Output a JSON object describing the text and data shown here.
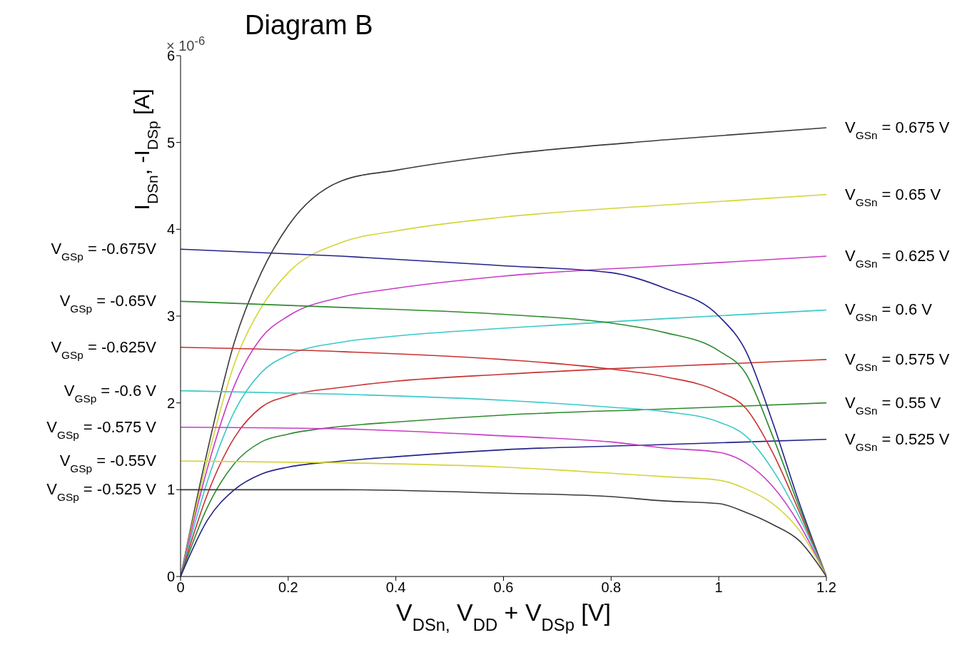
{
  "chart_data": {
    "type": "line",
    "title": "Diagram B",
    "xlabel": "V$_{DSn,}$ V$_{DD}$ + V$_{DSp}$ [V]",
    "ylabel": "I$_{DSn}$, -I$_{DSp}$ [A]",
    "annotations": [
      "× 10$^{-6}$"
    ],
    "xlim": [
      0,
      1.2
    ],
    "xticks": [
      0,
      0.2,
      0.4,
      0.6,
      0.8,
      1,
      1.2
    ],
    "ylim": [
      0,
      6
    ],
    "yticks": [
      0,
      1,
      2,
      3,
      4,
      5,
      6
    ],
    "line_style": "solid",
    "series": [
      {
        "name": "V$_{GSn}$ = 0.675 V",
        "color": "#3a3a3a",
        "x": [
          0,
          0.05,
          0.1,
          0.15,
          0.2,
          0.3,
          0.4,
          0.6,
          0.9,
          1.2
        ],
        "values": [
          0,
          1.45,
          2.7,
          3.5,
          4.04,
          4.56,
          4.68,
          4.86,
          5.03,
          5.17
        ]
      },
      {
        "name": "V$_{GSn}$ = 0.65 V",
        "color": "#d4d43a",
        "x": [
          0,
          0.05,
          0.1,
          0.15,
          0.2,
          0.3,
          0.4,
          0.6,
          0.9,
          1.2
        ],
        "values": [
          0,
          1.35,
          2.45,
          3.1,
          3.5,
          3.85,
          3.98,
          4.14,
          4.28,
          4.4
        ]
      },
      {
        "name": "V$_{GSn}$ = 0.625 V",
        "color": "#c83cc8",
        "x": [
          0,
          0.05,
          0.1,
          0.15,
          0.2,
          0.3,
          0.4,
          0.6,
          0.9,
          1.2
        ],
        "values": [
          0,
          1.25,
          2.2,
          2.75,
          3,
          3.22,
          3.32,
          3.46,
          3.58,
          3.69
        ]
      },
      {
        "name": "V$_{GSn}$ = 0.6 V",
        "color": "#3cc8c8",
        "x": [
          0,
          0.05,
          0.1,
          0.15,
          0.2,
          0.3,
          0.4,
          0.6,
          0.9,
          1.2
        ],
        "values": [
          0,
          1.1,
          1.9,
          2.35,
          2.55,
          2.7,
          2.77,
          2.86,
          2.97,
          3.07
        ]
      },
      {
        "name": "V$_{GSn}$ = 0.575 V",
        "color": "#c83232",
        "x": [
          0,
          0.05,
          0.1,
          0.15,
          0.2,
          0.3,
          0.4,
          0.6,
          0.9,
          1.2
        ],
        "values": [
          0,
          0.95,
          1.6,
          1.95,
          2.08,
          2.18,
          2.25,
          2.33,
          2.42,
          2.5
        ]
      },
      {
        "name": "V$_{GSn}$ = 0.55 V",
        "color": "#2e8a2e",
        "x": [
          0,
          0.05,
          0.1,
          0.15,
          0.2,
          0.3,
          0.4,
          0.6,
          0.9,
          1.2
        ],
        "values": [
          0,
          0.8,
          1.3,
          1.55,
          1.64,
          1.73,
          1.78,
          1.86,
          1.93,
          2
        ]
      },
      {
        "name": "V$_{GSn}$ = 0.525 V",
        "color": "#22228c",
        "x": [
          0,
          0.05,
          0.1,
          0.15,
          0.2,
          0.3,
          0.4,
          0.6,
          0.9,
          1.2
        ],
        "values": [
          0,
          0.65,
          1,
          1.18,
          1.26,
          1.33,
          1.38,
          1.46,
          1.52,
          1.58
        ]
      },
      {
        "name": "V$_{GSp}$ = -0.675V",
        "color": "#22228c",
        "x": [
          0,
          0.3,
          0.6,
          0.8,
          0.9,
          1,
          1.05,
          1.1,
          1.15,
          1.2
        ],
        "values": [
          3.77,
          3.69,
          3.58,
          3.5,
          3.32,
          3,
          2.6,
          1.78,
          0.84,
          0
        ]
      },
      {
        "name": "V$_{GSp}$ = -0.65V",
        "color": "#2e8a2e",
        "x": [
          0,
          0.3,
          0.6,
          0.8,
          0.9,
          1,
          1.05,
          1.1,
          1.15,
          1.2
        ],
        "values": [
          3.17,
          3.1,
          3.02,
          2.92,
          2.81,
          2.6,
          2.34,
          1.62,
          0.79,
          0
        ]
      },
      {
        "name": "V$_{GSp}$ = -0.625V",
        "color": "#c83232",
        "x": [
          0,
          0.3,
          0.6,
          0.8,
          0.9,
          1,
          1.05,
          1.1,
          1.15,
          1.2
        ],
        "values": [
          2.64,
          2.59,
          2.5,
          2.39,
          2.3,
          2.13,
          1.94,
          1.43,
          0.74,
          0
        ]
      },
      {
        "name": "V$_{GSp}$ = -0.6 V",
        "color": "#3cc8c8",
        "x": [
          0,
          0.3,
          0.6,
          0.8,
          0.9,
          1,
          1.05,
          1.1,
          1.15,
          1.2
        ],
        "values": [
          2.14,
          2.1,
          2.03,
          1.95,
          1.9,
          1.78,
          1.62,
          1.23,
          0.68,
          0
        ]
      },
      {
        "name": "V$_{GSp}$ = -0.575 V",
        "color": "#c83cc8",
        "x": [
          0,
          0.3,
          0.6,
          0.8,
          0.9,
          1,
          1.05,
          1.1,
          1.15,
          1.2
        ],
        "values": [
          1.72,
          1.7,
          1.62,
          1.55,
          1.48,
          1.43,
          1.31,
          1.04,
          0.6,
          0
        ]
      },
      {
        "name": "V$_{GSp}$ = -0.55V",
        "color": "#d4d43a",
        "x": [
          0,
          0.3,
          0.6,
          0.8,
          0.9,
          1,
          1.05,
          1.1,
          1.15,
          1.2
        ],
        "values": [
          1.33,
          1.31,
          1.26,
          1.19,
          1.15,
          1.11,
          1.01,
          0.84,
          0.53,
          0
        ]
      },
      {
        "name": "V$_{GSp}$ = -0.525 V",
        "color": "#3a3a3a",
        "x": [
          0,
          0.3,
          0.6,
          0.8,
          0.9,
          1,
          1.05,
          1.1,
          1.15,
          1.2
        ],
        "values": [
          1,
          1,
          0.96,
          0.92,
          0.87,
          0.84,
          0.74,
          0.6,
          0.41,
          0
        ]
      }
    ]
  }
}
